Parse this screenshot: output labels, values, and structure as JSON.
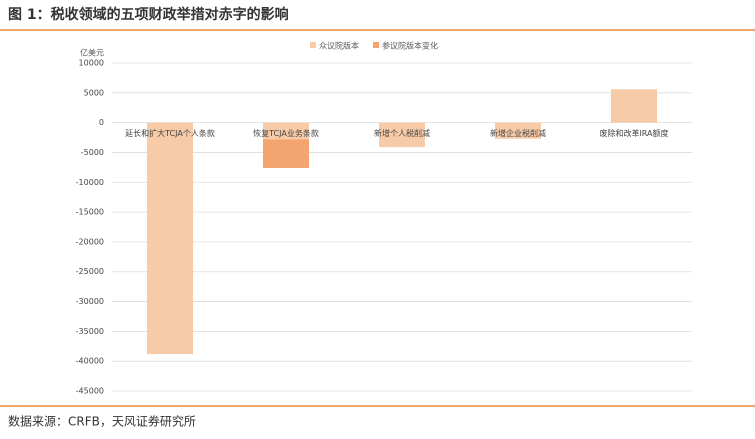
{
  "chart_data": {
    "type": "bar",
    "stacked": true,
    "title": "图 1：税收领域的五项财政举措对赤字的影响",
    "y_label": "亿美元",
    "source": "数据来源：CRFB，天风证券研究所",
    "categories": [
      "延长和扩大TCJA个人条款",
      "恢复TCJA业务条款",
      "新增个人税削减",
      "新增企业税削减",
      "废除和改革IRA额度"
    ],
    "series": [
      {
        "name": "众议院版本",
        "color": "#f8cba8",
        "values": [
          -38800,
          -2800,
          -4100,
          -2700,
          5600
        ]
      },
      {
        "name": "参议院版本变化",
        "color": "#f4a46e",
        "values": [
          null,
          -4800,
          null,
          null,
          null
        ]
      }
    ],
    "ylim": [
      -45000,
      10000
    ],
    "yticks": [
      10000,
      5000,
      0,
      -5000,
      -10000,
      -15000,
      -20000,
      -25000,
      -30000,
      -35000,
      -40000,
      -45000
    ],
    "grid": true,
    "legend": "top"
  }
}
